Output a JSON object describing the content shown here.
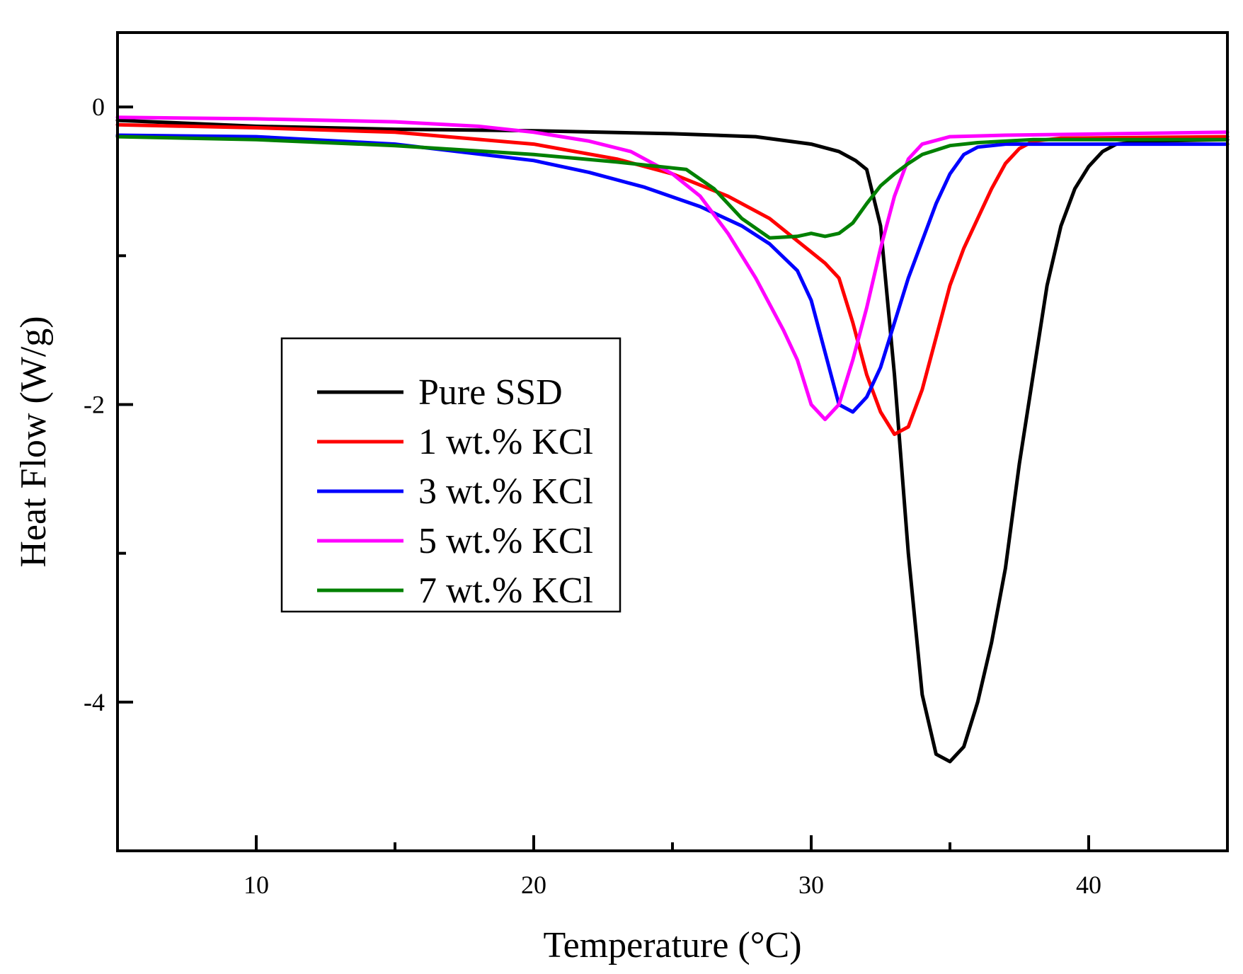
{
  "chart_data": {
    "type": "line",
    "title": "",
    "xlabel": "Temperature (°C)",
    "ylabel": "Heat Flow (W/g)",
    "xlim": [
      5,
      45
    ],
    "ylim": [
      -5,
      0.5
    ],
    "x_ticks": [
      10,
      20,
      30,
      40
    ],
    "x_tick_labels": [
      "10",
      "20",
      "30",
      "40"
    ],
    "x_minor_ticks": [
      15,
      25,
      35
    ],
    "y_ticks": [
      0,
      -2,
      -4
    ],
    "y_tick_labels": [
      "0",
      "-2",
      "-4"
    ],
    "y_minor_ticks": [
      -1,
      -3
    ],
    "legend_position": "center-left",
    "series": [
      {
        "name": "Pure SSD",
        "color": "#000000",
        "points": [
          [
            5,
            -0.09
          ],
          [
            10,
            -0.13
          ],
          [
            15,
            -0.15
          ],
          [
            20,
            -0.16
          ],
          [
            25,
            -0.18
          ],
          [
            28,
            -0.2
          ],
          [
            30,
            -0.25
          ],
          [
            31,
            -0.3
          ],
          [
            31.6,
            -0.36
          ],
          [
            32,
            -0.42
          ],
          [
            32.5,
            -0.8
          ],
          [
            33,
            -1.8
          ],
          [
            33.5,
            -3.0
          ],
          [
            34,
            -3.95
          ],
          [
            34.5,
            -4.35
          ],
          [
            35,
            -4.4
          ],
          [
            35.5,
            -4.3
          ],
          [
            36,
            -4.0
          ],
          [
            36.5,
            -3.6
          ],
          [
            37,
            -3.1
          ],
          [
            37.5,
            -2.4
          ],
          [
            38,
            -1.8
          ],
          [
            38.5,
            -1.2
          ],
          [
            39,
            -0.8
          ],
          [
            39.5,
            -0.55
          ],
          [
            40,
            -0.4
          ],
          [
            40.5,
            -0.3
          ],
          [
            41,
            -0.25
          ],
          [
            42,
            -0.23
          ],
          [
            45,
            -0.22
          ]
        ]
      },
      {
        "name": "1 wt.% KCl",
        "color": "#ff0000",
        "points": [
          [
            5,
            -0.12
          ],
          [
            10,
            -0.14
          ],
          [
            15,
            -0.17
          ],
          [
            20,
            -0.25
          ],
          [
            23,
            -0.35
          ],
          [
            25,
            -0.45
          ],
          [
            27,
            -0.6
          ],
          [
            28.5,
            -0.75
          ],
          [
            29.5,
            -0.9
          ],
          [
            30.5,
            -1.05
          ],
          [
            31,
            -1.15
          ],
          [
            31.5,
            -1.45
          ],
          [
            32,
            -1.8
          ],
          [
            32.5,
            -2.05
          ],
          [
            33,
            -2.2
          ],
          [
            33.5,
            -2.15
          ],
          [
            34,
            -1.9
          ],
          [
            34.5,
            -1.55
          ],
          [
            35,
            -1.2
          ],
          [
            35.5,
            -0.95
          ],
          [
            36,
            -0.75
          ],
          [
            36.5,
            -0.55
          ],
          [
            37,
            -0.38
          ],
          [
            37.5,
            -0.28
          ],
          [
            38,
            -0.23
          ],
          [
            39,
            -0.21
          ],
          [
            45,
            -0.2
          ]
        ]
      },
      {
        "name": "3 wt.% KCl",
        "color": "#0000ff",
        "points": [
          [
            5,
            -0.19
          ],
          [
            10,
            -0.2
          ],
          [
            15,
            -0.25
          ],
          [
            20,
            -0.36
          ],
          [
            22,
            -0.44
          ],
          [
            24,
            -0.54
          ],
          [
            26,
            -0.67
          ],
          [
            27.5,
            -0.8
          ],
          [
            28.5,
            -0.92
          ],
          [
            29.5,
            -1.1
          ],
          [
            30,
            -1.3
          ],
          [
            30.5,
            -1.65
          ],
          [
            31,
            -2.0
          ],
          [
            31.5,
            -2.05
          ],
          [
            32,
            -1.95
          ],
          [
            32.5,
            -1.75
          ],
          [
            33,
            -1.45
          ],
          [
            33.5,
            -1.15
          ],
          [
            34,
            -0.9
          ],
          [
            34.5,
            -0.65
          ],
          [
            35,
            -0.45
          ],
          [
            35.5,
            -0.32
          ],
          [
            36,
            -0.27
          ],
          [
            37,
            -0.25
          ],
          [
            45,
            -0.25
          ]
        ]
      },
      {
        "name": "5 wt.% KCl",
        "color": "#ff00ff",
        "points": [
          [
            5,
            -0.07
          ],
          [
            10,
            -0.08
          ],
          [
            15,
            -0.1
          ],
          [
            18,
            -0.13
          ],
          [
            20,
            -0.17
          ],
          [
            22,
            -0.23
          ],
          [
            23.5,
            -0.3
          ],
          [
            25,
            -0.45
          ],
          [
            26,
            -0.6
          ],
          [
            27,
            -0.85
          ],
          [
            28,
            -1.15
          ],
          [
            29,
            -1.5
          ],
          [
            29.5,
            -1.7
          ],
          [
            30,
            -2.0
          ],
          [
            30.5,
            -2.1
          ],
          [
            31,
            -2.0
          ],
          [
            31.5,
            -1.7
          ],
          [
            32,
            -1.35
          ],
          [
            32.5,
            -0.95
          ],
          [
            33,
            -0.6
          ],
          [
            33.5,
            -0.35
          ],
          [
            34,
            -0.25
          ],
          [
            35,
            -0.2
          ],
          [
            37,
            -0.19
          ],
          [
            45,
            -0.17
          ]
        ]
      },
      {
        "name": "7 wt.% KCl",
        "color": "#008000",
        "points": [
          [
            5,
            -0.2
          ],
          [
            10,
            -0.22
          ],
          [
            15,
            -0.26
          ],
          [
            20,
            -0.32
          ],
          [
            23,
            -0.37
          ],
          [
            24.5,
            -0.4
          ],
          [
            25.5,
            -0.42
          ],
          [
            26.5,
            -0.55
          ],
          [
            27.5,
            -0.75
          ],
          [
            28.5,
            -0.88
          ],
          [
            29.5,
            -0.87
          ],
          [
            30,
            -0.85
          ],
          [
            30.5,
            -0.87
          ],
          [
            31,
            -0.85
          ],
          [
            31.5,
            -0.78
          ],
          [
            32,
            -0.65
          ],
          [
            32.5,
            -0.53
          ],
          [
            33,
            -0.45
          ],
          [
            33.5,
            -0.38
          ],
          [
            34,
            -0.32
          ],
          [
            35,
            -0.26
          ],
          [
            36,
            -0.24
          ],
          [
            38,
            -0.22
          ],
          [
            45,
            -0.22
          ]
        ]
      }
    ]
  }
}
